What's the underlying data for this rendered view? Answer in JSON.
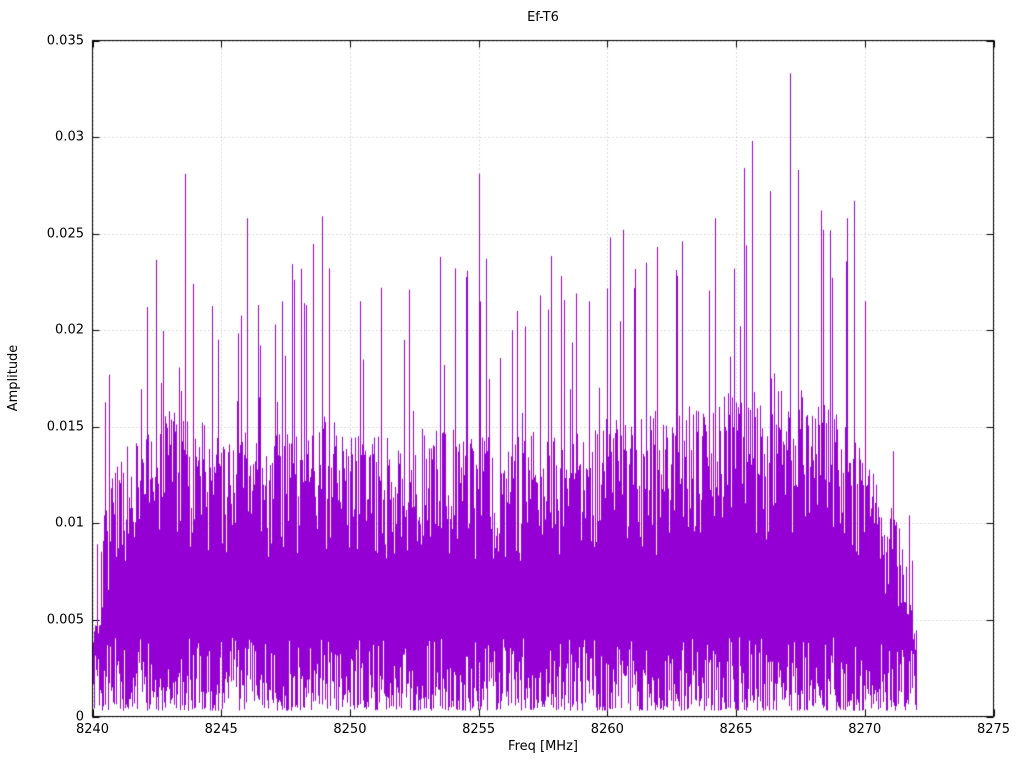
{
  "chart_data": {
    "type": "line",
    "title": "Ef-T6",
    "xlabel": "Freq [MHz]",
    "ylabel": "Amplitude",
    "xlim": [
      8240,
      8275
    ],
    "ylim": [
      0,
      0.035
    ],
    "grid": true,
    "legend": "none",
    "line_color": "#9400d3",
    "xticks": {
      "values": [
        8240,
        8245,
        8250,
        8255,
        8260,
        8265,
        8270,
        8275
      ],
      "labels": [
        "8240",
        "8245",
        "8250",
        "8255",
        "8260",
        "8265",
        "8270",
        "8275"
      ]
    },
    "yticks": {
      "values": [
        0,
        0.005,
        0.01,
        0.015,
        0.02,
        0.025,
        0.03,
        0.035
      ],
      "labels": [
        "0",
        "0.005",
        "0.01",
        "0.015",
        "0.02",
        "0.025",
        "0.03",
        "0.035"
      ]
    },
    "signal": {
      "description": "dense noise-like amplitude spectrum occupying 8240-8272 MHz",
      "x_start": 8240.0,
      "x_end": 8272.0,
      "noise_floor_min": 0.0003,
      "envelope_x": [
        8240,
        8241,
        8242,
        8243,
        8244,
        8245,
        8246,
        8247,
        8248,
        8249,
        8250,
        8251,
        8252,
        8253,
        8254,
        8255,
        8256,
        8257,
        8258,
        8259,
        8260,
        8261,
        8262,
        8263,
        8264,
        8265,
        8266,
        8267,
        8268,
        8269,
        8270,
        8271,
        8272
      ],
      "envelope_top": [
        0.01,
        0.0135,
        0.015,
        0.016,
        0.0155,
        0.0145,
        0.015,
        0.0145,
        0.015,
        0.016,
        0.0145,
        0.015,
        0.0145,
        0.015,
        0.015,
        0.0145,
        0.0145,
        0.015,
        0.015,
        0.015,
        0.0155,
        0.0155,
        0.016,
        0.016,
        0.0165,
        0.017,
        0.018,
        0.018,
        0.0165,
        0.016,
        0.0135,
        0.011,
        0.009
      ],
      "peaks": [
        [
          8242.1,
          0.0212
        ],
        [
          8243.6,
          0.0281
        ],
        [
          8243.9,
          0.0224
        ],
        [
          8246.0,
          0.0258
        ],
        [
          8247.1,
          0.0203
        ],
        [
          8248.2,
          0.0214
        ],
        [
          8248.9,
          0.0259
        ],
        [
          8249.2,
          0.0232
        ],
        [
          8250.4,
          0.0215
        ],
        [
          8251.2,
          0.0222
        ],
        [
          8252.3,
          0.0221
        ],
        [
          8253.5,
          0.0238
        ],
        [
          8254.1,
          0.0232
        ],
        [
          8255.0,
          0.0281
        ],
        [
          8255.3,
          0.0237
        ],
        [
          8256.5,
          0.021
        ],
        [
          8257.4,
          0.0218
        ],
        [
          8258.2,
          0.0228
        ],
        [
          8259.3,
          0.0215
        ],
        [
          8260.1,
          0.0248
        ],
        [
          8260.6,
          0.0252
        ],
        [
          8261.5,
          0.0235
        ],
        [
          8262.9,
          0.0246
        ],
        [
          8264.2,
          0.0258
        ],
        [
          8265.3,
          0.0284
        ],
        [
          8265.6,
          0.0298
        ],
        [
          8266.3,
          0.0272
        ],
        [
          8267.1,
          0.0333
        ],
        [
          8267.4,
          0.0283
        ],
        [
          8268.3,
          0.0262
        ],
        [
          8269.3,
          0.0258
        ],
        [
          8269.6,
          0.0267
        ],
        [
          8270.0,
          0.0215
        ]
      ]
    }
  }
}
